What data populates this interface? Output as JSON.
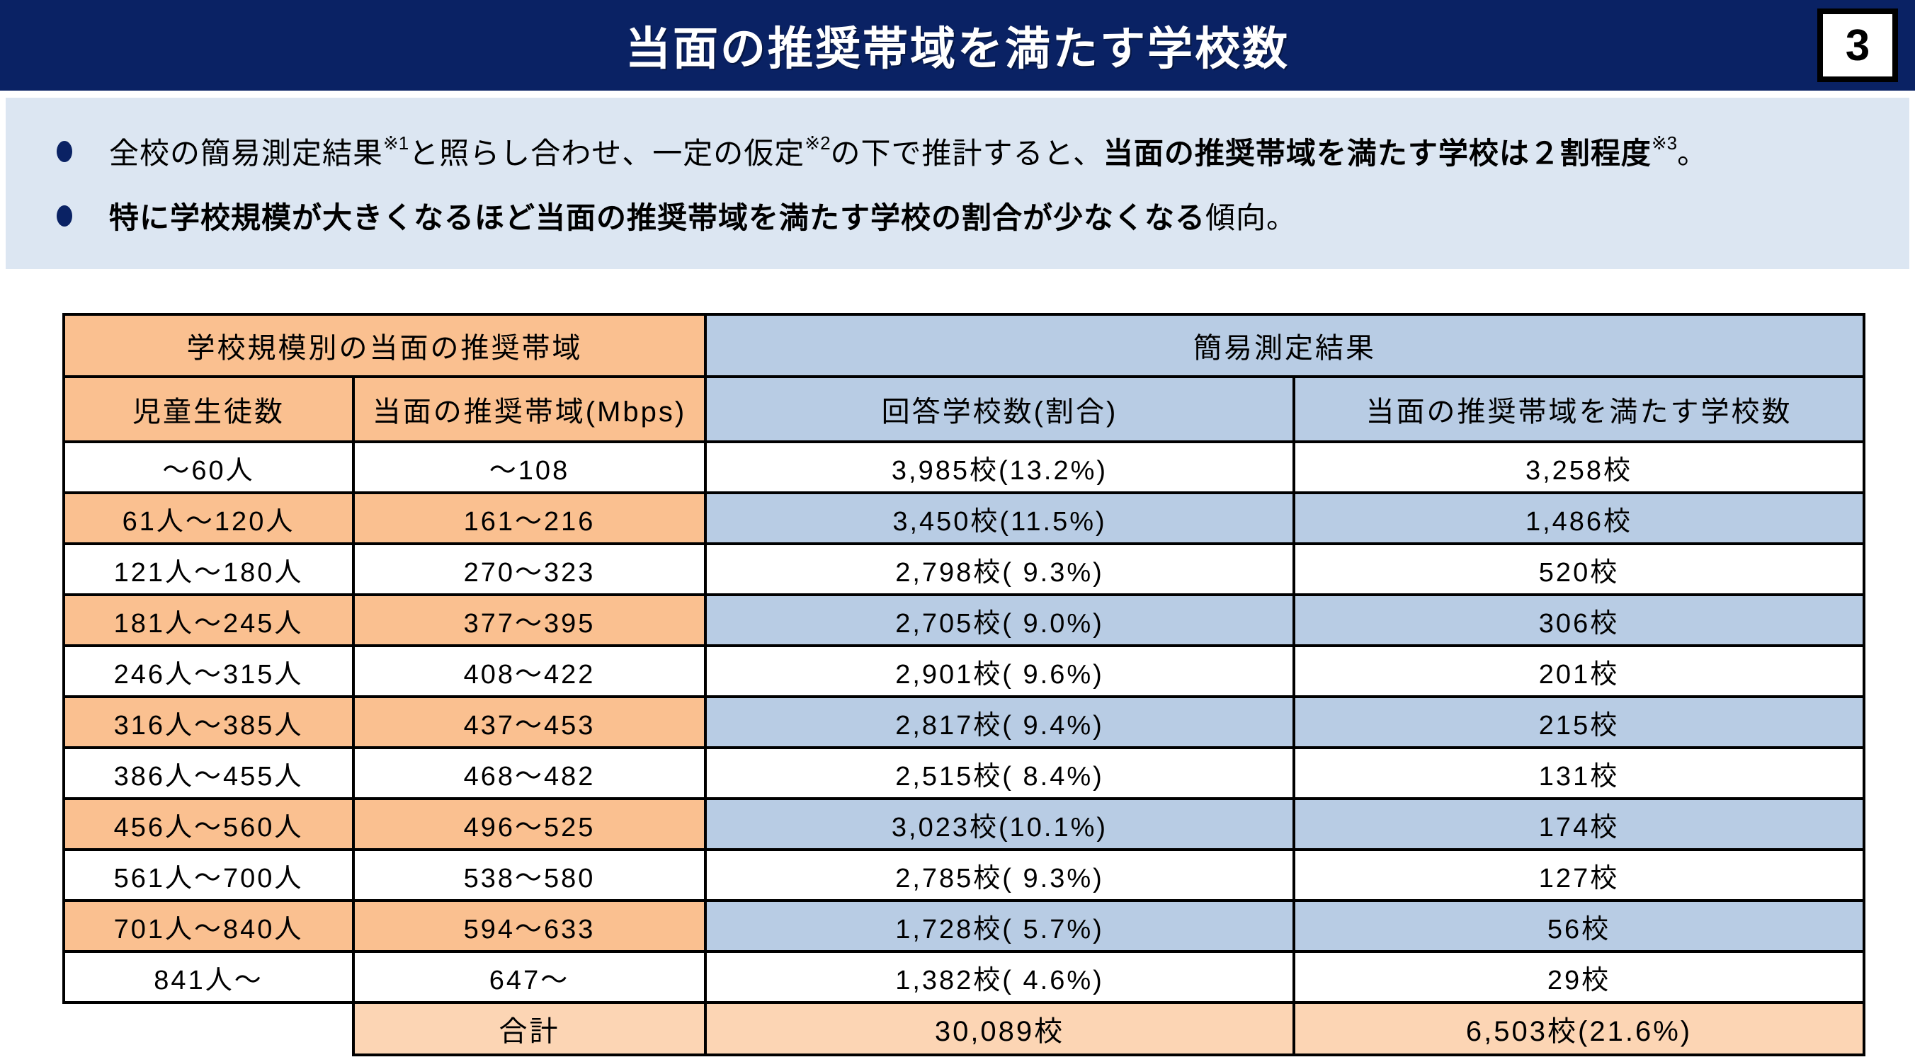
{
  "header": {
    "title": "当面の推奨帯域を満たす学校数",
    "page_number": "3"
  },
  "summary": {
    "bullets": [
      {
        "segments": [
          {
            "text": "全校の簡易測定結果",
            "style": "normal"
          },
          {
            "text": "※1",
            "style": "sup"
          },
          {
            "text": "と照らし合わせ、一定の仮定",
            "style": "normal"
          },
          {
            "text": "※2",
            "style": "sup"
          },
          {
            "text": "の下で推計すると、",
            "style": "normal"
          },
          {
            "text": "当面の推奨帯域を満たす学校は２割程度",
            "style": "bold"
          },
          {
            "text": "※3",
            "style": "sup"
          },
          {
            "text": "。",
            "style": "normal"
          }
        ]
      },
      {
        "segments": [
          {
            "text": "特に学校規模が大きくなるほど当面の推奨帯域を満たす学校の割合が少なくなる",
            "style": "bold"
          },
          {
            "text": "傾向。",
            "style": "normal"
          }
        ]
      }
    ]
  },
  "table": {
    "group_headers": {
      "left": "学校規模別の当面の推奨帯域",
      "right": "簡易測定結果"
    },
    "columns": {
      "students": "児童生徒数",
      "bandwidth": "当面の推奨帯域(Mbps)",
      "responses": "回答学校数(割合)",
      "meeting": "当面の推奨帯域を満たす学校数"
    },
    "rows": [
      {
        "students": "～60人",
        "bandwidth": "～108",
        "responses": "3,985校(13.2%)",
        "meeting": "3,258校",
        "highlight": false
      },
      {
        "students": "61人～120人",
        "bandwidth": "161～216",
        "responses": "3,450校(11.5%)",
        "meeting": "1,486校",
        "highlight": true
      },
      {
        "students": "121人～180人",
        "bandwidth": "270～323",
        "responses": "2,798校( 9.3%)",
        "meeting": "520校",
        "highlight": false
      },
      {
        "students": "181人～245人",
        "bandwidth": "377～395",
        "responses": "2,705校( 9.0%)",
        "meeting": "306校",
        "highlight": true
      },
      {
        "students": "246人～315人",
        "bandwidth": "408～422",
        "responses": "2,901校( 9.6%)",
        "meeting": "201校",
        "highlight": false
      },
      {
        "students": "316人～385人",
        "bandwidth": "437～453",
        "responses": "2,817校( 9.4%)",
        "meeting": "215校",
        "highlight": true
      },
      {
        "students": "386人～455人",
        "bandwidth": "468～482",
        "responses": "2,515校( 8.4%)",
        "meeting": "131校",
        "highlight": false
      },
      {
        "students": "456人～560人",
        "bandwidth": "496～525",
        "responses": "3,023校(10.1%)",
        "meeting": "174校",
        "highlight": true
      },
      {
        "students": "561人～700人",
        "bandwidth": "538～580",
        "responses": "2,785校( 9.3%)",
        "meeting": "127校",
        "highlight": false
      },
      {
        "students": "701人～840人",
        "bandwidth": "594～633",
        "responses": "1,728校( 5.7%)",
        "meeting": "56校",
        "highlight": true
      },
      {
        "students": "841人～",
        "bandwidth": "647～",
        "responses": "1,382校( 4.6%)",
        "meeting": "29校",
        "highlight": false
      }
    ],
    "total": {
      "label": "合計",
      "responses": "30,089校",
      "meeting": "6,503校(21.6%)"
    }
  },
  "colors": {
    "title_bar": "#0A2264",
    "summary_panel": "#DCE6F2",
    "orange_cell": "#FAC090",
    "blue_cell": "#B8CCE4",
    "total_cell": "#FCD5B4",
    "border": "#000000"
  }
}
